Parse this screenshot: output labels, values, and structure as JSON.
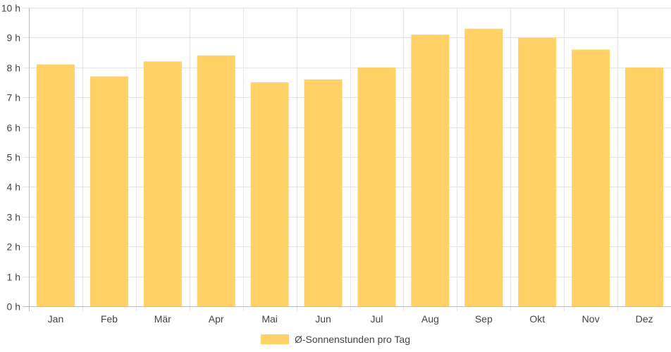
{
  "chart_data": {
    "type": "bar",
    "categories": [
      "Jan",
      "Feb",
      "Mär",
      "Apr",
      "Mai",
      "Jun",
      "Jul",
      "Aug",
      "Sep",
      "Okt",
      "Nov",
      "Dez"
    ],
    "series": [
      {
        "name": "Ø-Sonnenstunden pro Tag",
        "values": [
          8.1,
          7.7,
          8.2,
          8.4,
          7.5,
          7.6,
          8.0,
          9.1,
          9.3,
          9.0,
          8.6,
          8.0
        ],
        "color": "#ffd166"
      }
    ],
    "ylim": [
      0,
      10
    ],
    "ytick_labels": [
      "0 h",
      "1 h",
      "2 h",
      "3 h",
      "4 h",
      "5 h",
      "6 h",
      "7 h",
      "8 h",
      "9 h",
      "10 h"
    ],
    "grid": true,
    "legend_position": "bottom"
  },
  "colors": {
    "bar": "#ffd166",
    "grid": "#e5e5e5",
    "axis": "#bdbdbd",
    "text": "#444444"
  }
}
